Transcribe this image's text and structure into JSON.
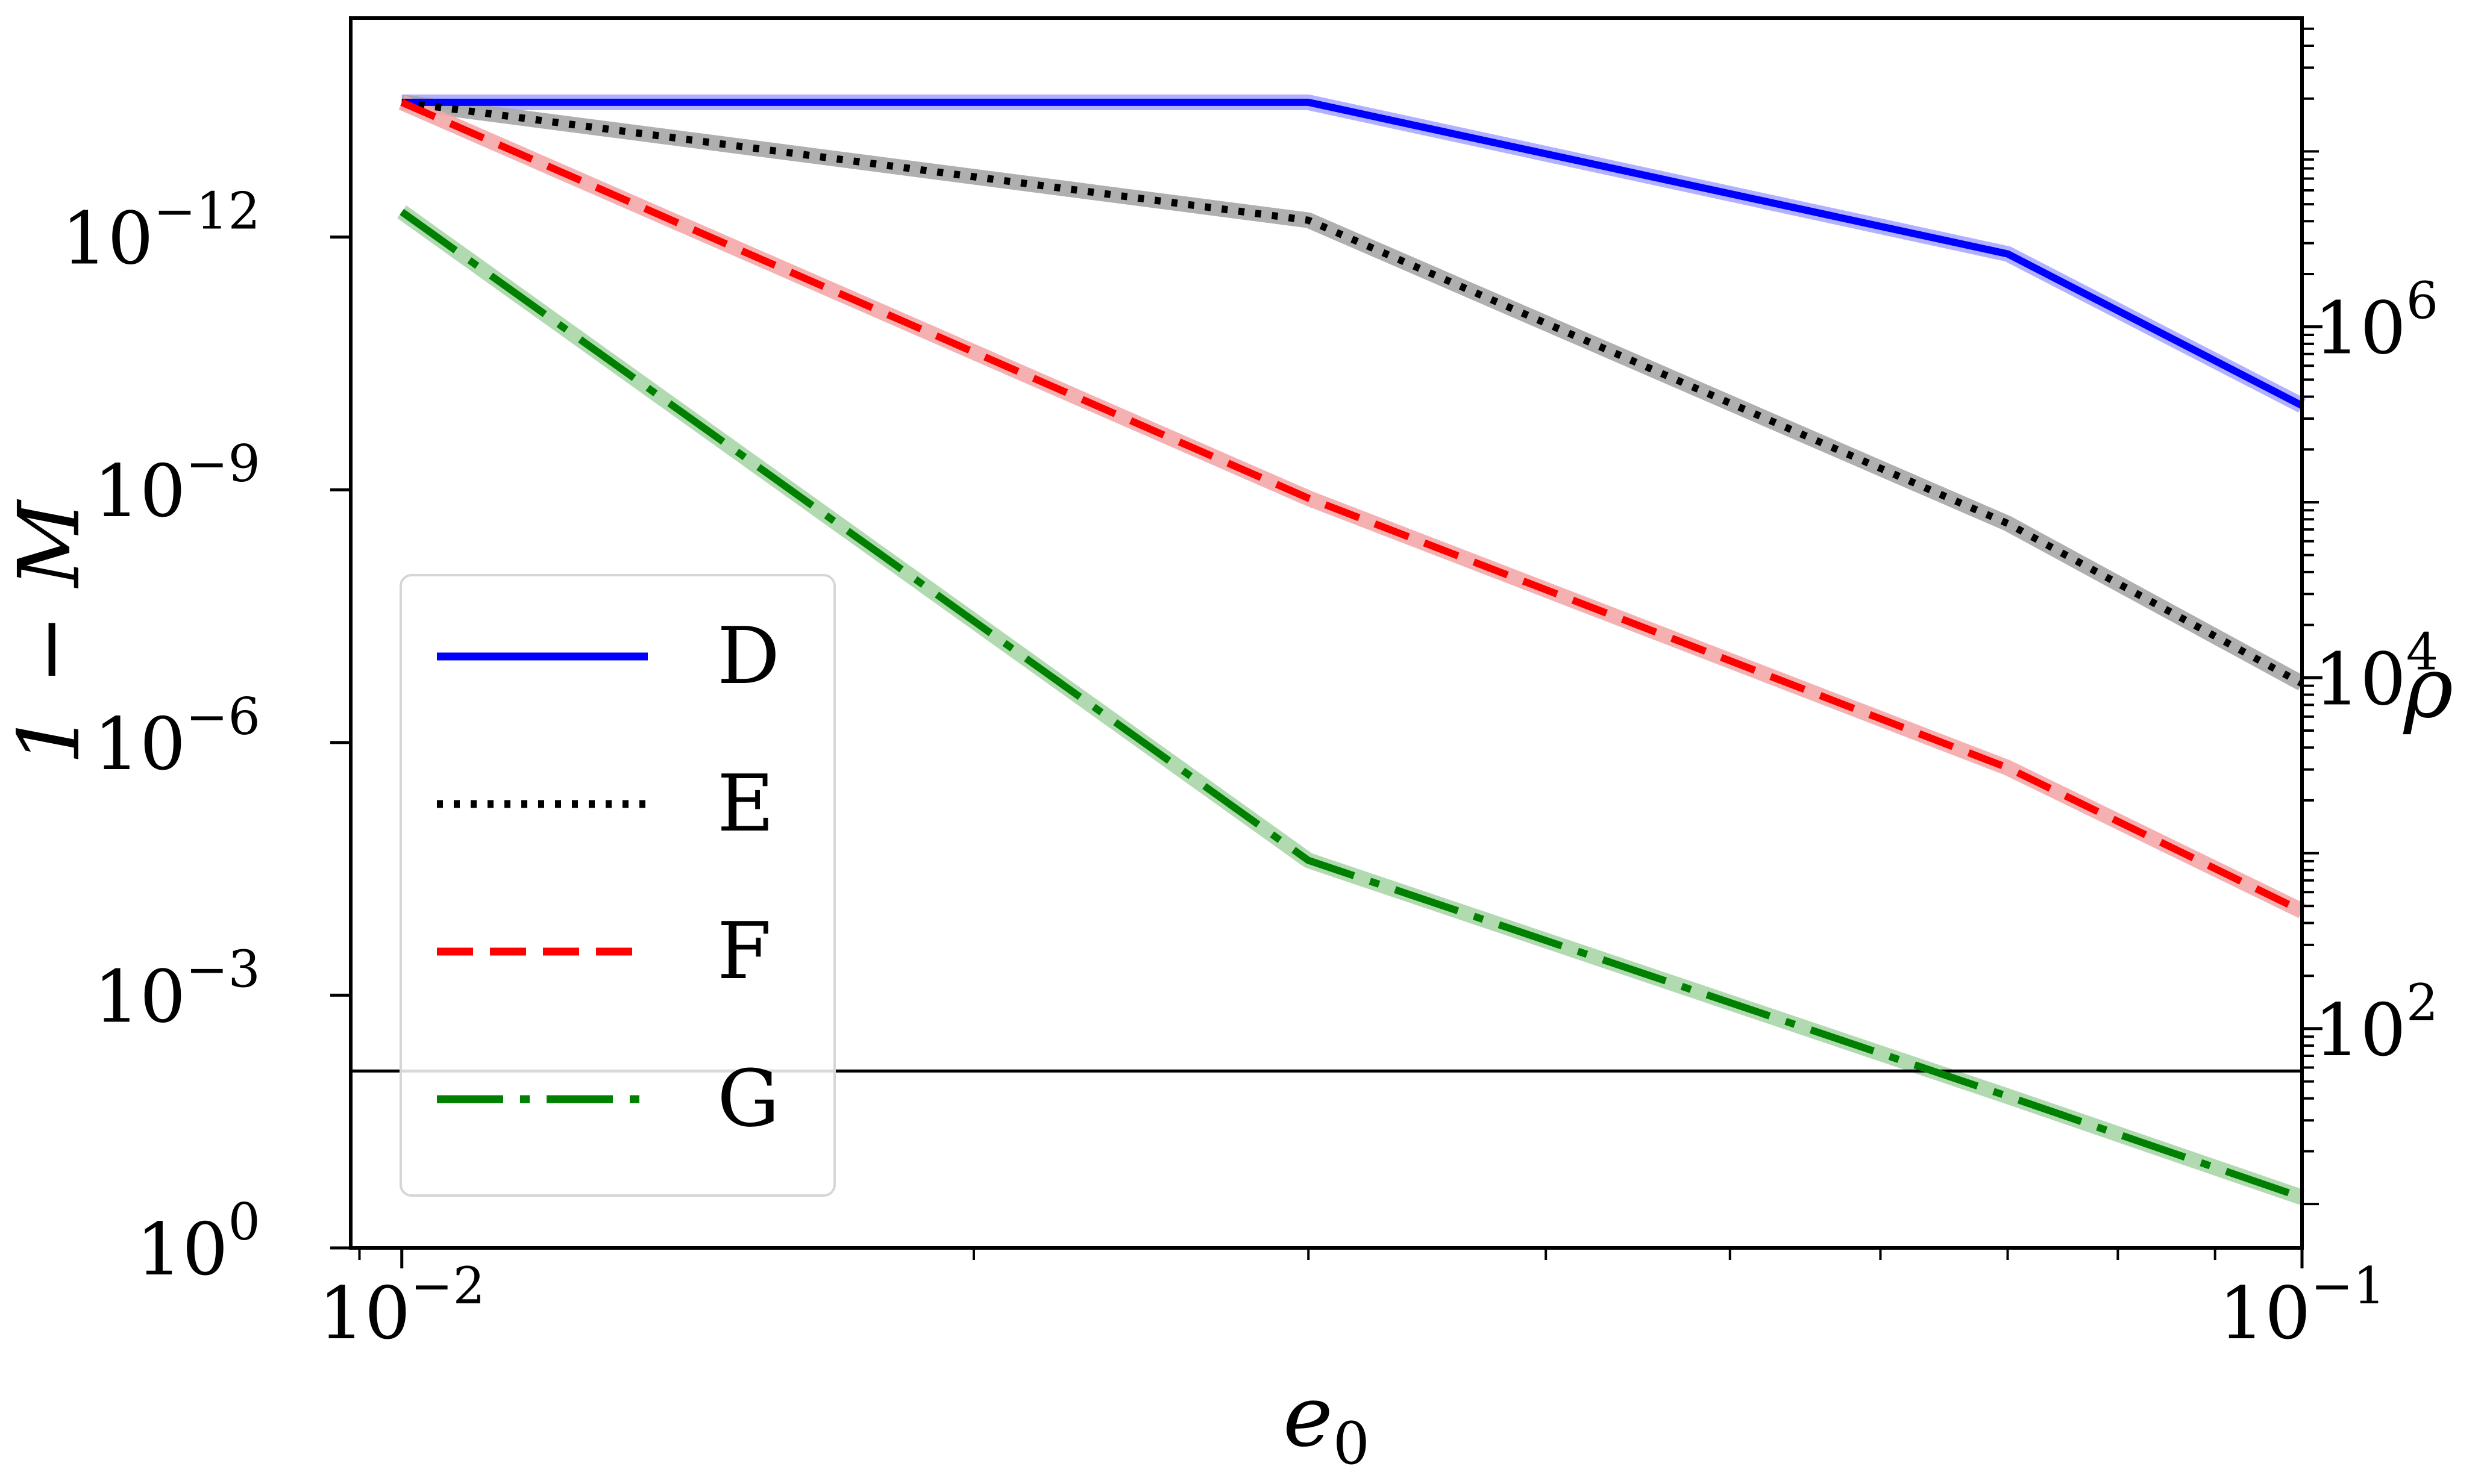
{
  "chart_data": {
    "type": "line",
    "xlabel": "e",
    "xlabel_sub": "0",
    "ylabel": "1 − M",
    "y2label": "ρ",
    "xscale": "log",
    "yscale": "log",
    "y_inverted": true,
    "xlim": [
      0.0094,
      0.1
    ],
    "ylim_exponent": [
      0,
      -14.6
    ],
    "y2lim_exponent": [
      0.75,
      7.76
    ],
    "x_ticks": [
      {
        "base": "10",
        "exp": "−2",
        "value": 0.01
      },
      {
        "base": "10",
        "exp": "−1",
        "value": 0.1
      }
    ],
    "y_ticks": [
      {
        "base": "10",
        "exp": "0",
        "value": 0
      },
      {
        "base": "10",
        "exp": "−3",
        "value": -3
      },
      {
        "base": "10",
        "exp": "−6",
        "value": -6
      },
      {
        "base": "10",
        "exp": "−9",
        "value": -9
      },
      {
        "base": "10",
        "exp": "−12",
        "value": -12
      }
    ],
    "y2_ticks": [
      {
        "base": "10",
        "exp": "2",
        "value": 2
      },
      {
        "base": "10",
        "exp": "4",
        "value": 4
      },
      {
        "base": "10",
        "exp": "6",
        "value": 6
      }
    ],
    "x": [
      0.01,
      0.03,
      0.07,
      0.1
    ],
    "series": [
      {
        "name": "D",
        "style": "solid",
        "color": "#0000ff",
        "band": "#a9a9ff",
        "y_exp": [
          -13.6,
          -13.6,
          -11.8,
          -10.0
        ]
      },
      {
        "name": "E",
        "style": "dotted",
        "color": "#000000",
        "band": "#a6a6a6",
        "y_exp": [
          -13.6,
          -12.2,
          -8.6,
          -6.7
        ]
      },
      {
        "name": "F",
        "style": "dashed",
        "color": "#ff0000",
        "band": "#f4a9a9",
        "y_exp": [
          -13.6,
          -8.9,
          -5.7,
          -4.0
        ]
      },
      {
        "name": "G",
        "style": "dashdot",
        "color": "#008000",
        "band": "#a9d6a9",
        "y_exp": [
          -12.3,
          -4.6,
          -1.8,
          -0.6
        ]
      }
    ],
    "hline_y_exp": -2.1,
    "legend_position": "lower-left",
    "grid": false
  }
}
